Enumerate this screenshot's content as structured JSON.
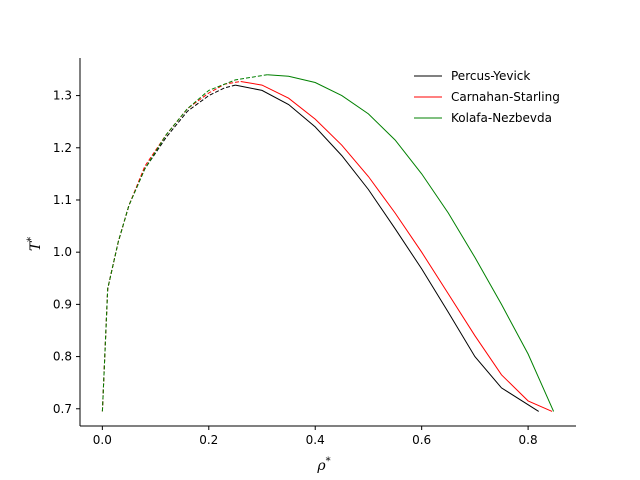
{
  "chart_data": {
    "type": "line",
    "xlabel": "ρ",
    "xlabel_sup": "*",
    "ylabel": "T",
    "ylabel_sup": "*",
    "xlim": [
      -0.042,
      0.89
    ],
    "ylim": [
      0.667,
      1.372
    ],
    "xticks": [
      0.0,
      0.2,
      0.4,
      0.6,
      0.8
    ],
    "xtick_labels": [
      "0.0",
      "0.2",
      "0.4",
      "0.6",
      "0.8"
    ],
    "yticks": [
      0.7,
      0.8,
      0.9,
      1.0,
      1.1,
      1.2,
      1.3
    ],
    "ytick_labels": [
      "0.7",
      "0.8",
      "0.9",
      "1.0",
      "1.1",
      "1.2",
      "1.3"
    ],
    "grid": false,
    "legend_position": "top-right",
    "series": [
      {
        "name": "Percus-Yevick",
        "color": "#000000",
        "critical": [
          0.25,
          1.32
        ],
        "vapor_dashed": [
          [
            0.0,
            0.695
          ],
          [
            0.01,
            0.93
          ],
          [
            0.03,
            1.02
          ],
          [
            0.05,
            1.09
          ],
          [
            0.08,
            1.16
          ],
          [
            0.12,
            1.22
          ],
          [
            0.16,
            1.27
          ],
          [
            0.2,
            1.3
          ],
          [
            0.23,
            1.315
          ],
          [
            0.25,
            1.32
          ]
        ],
        "liquid_solid": [
          [
            0.25,
            1.32
          ],
          [
            0.3,
            1.31
          ],
          [
            0.35,
            1.283
          ],
          [
            0.4,
            1.24
          ],
          [
            0.45,
            1.185
          ],
          [
            0.5,
            1.12
          ],
          [
            0.55,
            1.045
          ],
          [
            0.6,
            0.968
          ],
          [
            0.65,
            0.885
          ],
          [
            0.7,
            0.8
          ],
          [
            0.75,
            0.74
          ],
          [
            0.82,
            0.695
          ]
        ]
      },
      {
        "name": "Carnahan-Starling",
        "color": "#ff0000",
        "critical": [
          0.26,
          1.327
        ],
        "vapor_dashed": [
          [
            0.0,
            0.695
          ],
          [
            0.01,
            0.93
          ],
          [
            0.03,
            1.02
          ],
          [
            0.05,
            1.09
          ],
          [
            0.08,
            1.165
          ],
          [
            0.12,
            1.225
          ],
          [
            0.16,
            1.275
          ],
          [
            0.2,
            1.305
          ],
          [
            0.23,
            1.322
          ],
          [
            0.26,
            1.327
          ]
        ],
        "liquid_solid": [
          [
            0.26,
            1.327
          ],
          [
            0.3,
            1.32
          ],
          [
            0.35,
            1.295
          ],
          [
            0.4,
            1.255
          ],
          [
            0.45,
            1.205
          ],
          [
            0.5,
            1.145
          ],
          [
            0.55,
            1.075
          ],
          [
            0.6,
            1.0
          ],
          [
            0.65,
            0.92
          ],
          [
            0.7,
            0.84
          ],
          [
            0.75,
            0.765
          ],
          [
            0.8,
            0.715
          ],
          [
            0.845,
            0.695
          ]
        ]
      },
      {
        "name": "Kolafa-Nezbevda",
        "color": "#008000",
        "critical": [
          0.31,
          1.34
        ],
        "vapor_dashed": [
          [
            0.0,
            0.695
          ],
          [
            0.01,
            0.93
          ],
          [
            0.03,
            1.02
          ],
          [
            0.05,
            1.09
          ],
          [
            0.08,
            1.16
          ],
          [
            0.12,
            1.225
          ],
          [
            0.16,
            1.275
          ],
          [
            0.2,
            1.31
          ],
          [
            0.25,
            1.33
          ],
          [
            0.31,
            1.34
          ]
        ],
        "liquid_solid": [
          [
            0.31,
            1.34
          ],
          [
            0.35,
            1.337
          ],
          [
            0.4,
            1.325
          ],
          [
            0.45,
            1.3
          ],
          [
            0.5,
            1.265
          ],
          [
            0.55,
            1.215
          ],
          [
            0.6,
            1.15
          ],
          [
            0.65,
            1.075
          ],
          [
            0.7,
            0.99
          ],
          [
            0.75,
            0.9
          ],
          [
            0.8,
            0.805
          ],
          [
            0.848,
            0.695
          ]
        ]
      }
    ]
  }
}
